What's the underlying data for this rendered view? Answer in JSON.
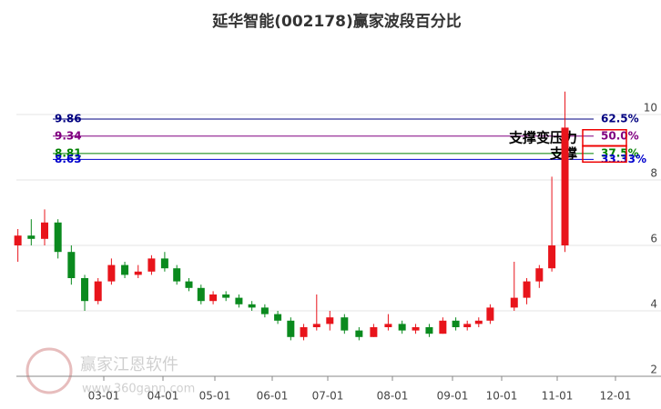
{
  "chart_data": {
    "type": "candlestick",
    "title": "延华智能(002178)赢家波段百分比",
    "x": [
      "01-15",
      "01-22",
      "01-29",
      "02-05",
      "02-12",
      "02-19",
      "02-26",
      "03-05",
      "03-12",
      "03-19",
      "03-26",
      "04-02",
      "04-09",
      "04-16",
      "04-23",
      "04-30",
      "05-07",
      "05-14",
      "05-21",
      "05-28",
      "06-04",
      "06-11",
      "06-18",
      "06-25",
      "07-02",
      "07-09",
      "07-16",
      "07-23",
      "07-30",
      "08-06",
      "08-13",
      "08-20",
      "08-27",
      "09-03",
      "09-10",
      "09-17",
      "09-24",
      "10-08",
      "10-15",
      "10-22",
      "10-29",
      "11-05"
    ],
    "open": [
      6.0,
      6.3,
      6.2,
      6.7,
      5.8,
      5.0,
      4.3,
      4.9,
      5.4,
      5.1,
      5.2,
      5.6,
      5.3,
      4.9,
      4.7,
      4.3,
      4.5,
      4.4,
      4.2,
      4.1,
      3.9,
      3.7,
      3.2,
      3.5,
      3.6,
      3.8,
      3.4,
      3.2,
      3.5,
      3.6,
      3.4,
      3.5,
      3.3,
      3.7,
      3.5,
      3.6,
      3.7,
      4.1,
      4.4,
      4.9,
      5.3,
      6.0
    ],
    "high": [
      6.5,
      6.8,
      7.1,
      6.8,
      6.0,
      5.1,
      5.0,
      5.6,
      5.5,
      5.4,
      5.7,
      5.8,
      5.4,
      5.0,
      4.8,
      4.6,
      4.6,
      4.5,
      4.3,
      4.2,
      4.0,
      3.8,
      3.6,
      4.5,
      4.0,
      3.9,
      3.5,
      3.6,
      3.9,
      3.7,
      3.6,
      3.6,
      3.8,
      3.8,
      3.7,
      3.8,
      4.2,
      5.5,
      5.0,
      5.4,
      8.1,
      10.7
    ],
    "low": [
      5.5,
      6.0,
      6.0,
      5.6,
      4.8,
      4.0,
      4.2,
      4.8,
      5.0,
      5.0,
      5.1,
      5.2,
      4.8,
      4.6,
      4.2,
      4.2,
      4.3,
      4.1,
      4.0,
      3.8,
      3.6,
      3.1,
      3.1,
      3.4,
      3.4,
      3.3,
      3.1,
      3.2,
      3.4,
      3.3,
      3.3,
      3.2,
      3.3,
      3.4,
      3.4,
      3.5,
      3.6,
      4.0,
      4.2,
      4.7,
      5.2,
      5.8
    ],
    "close": [
      6.3,
      6.2,
      6.7,
      5.8,
      5.0,
      4.3,
      4.9,
      5.4,
      5.1,
      5.2,
      5.6,
      5.3,
      4.9,
      4.7,
      4.3,
      4.5,
      4.4,
      4.2,
      4.1,
      3.9,
      3.7,
      3.2,
      3.5,
      3.6,
      3.8,
      3.4,
      3.2,
      3.5,
      3.6,
      3.4,
      3.5,
      3.3,
      3.7,
      3.5,
      3.6,
      3.7,
      4.1,
      4.4,
      4.9,
      5.3,
      6.0,
      9.6
    ],
    "up_color": "#e8141b",
    "down_color": "#0a8a1e",
    "xticks": [
      "03-01",
      "04-01",
      "05-01",
      "06-01",
      "07-01",
      "08-01",
      "09-01",
      "10-01",
      "11-01",
      "12-01"
    ],
    "ylim": [
      2,
      12.25
    ],
    "yticks": [
      2,
      4,
      6,
      8,
      10
    ],
    "grid": true,
    "levels": [
      {
        "value": 9.86,
        "label": "62.5%",
        "color": "#000080"
      },
      {
        "value": 9.34,
        "label": "50.0%",
        "color": "#800080"
      },
      {
        "value": 8.81,
        "label": "37.5%",
        "color": "#008000"
      },
      {
        "value": 8.63,
        "label": "33.33%",
        "color": "#0000cd"
      }
    ],
    "annotations": [
      "支撑变压力",
      "支撑"
    ],
    "watermark": {
      "name": "赢家江恩软件",
      "url": "www.360gann.com"
    }
  }
}
